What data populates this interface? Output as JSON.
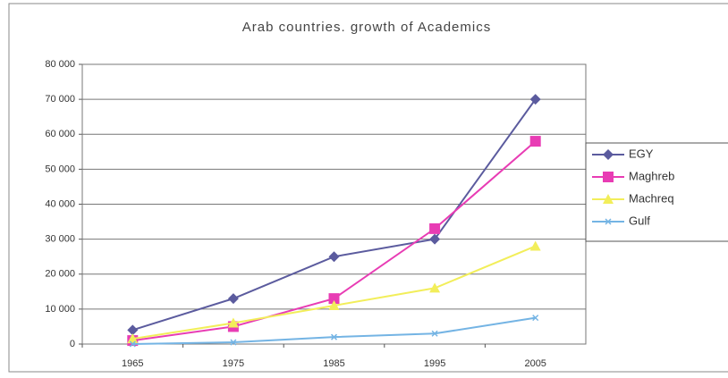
{
  "chart_data": {
    "type": "line",
    "title": "Arab countries. growth of Academics",
    "categories": [
      "1965",
      "1975",
      "1985",
      "1995",
      "2005"
    ],
    "series": [
      {
        "name": "EGY",
        "color": "#5b5b9e",
        "marker": "diamond",
        "values": [
          4000,
          13000,
          25000,
          30000,
          70000
        ]
      },
      {
        "name": "Maghreb",
        "color": "#e83cb4",
        "marker": "square",
        "values": [
          1000,
          5000,
          13000,
          33000,
          58000
        ]
      },
      {
        "name": "Machreq",
        "color": "#f2ee5a",
        "marker": "triangle",
        "values": [
          1500,
          6000,
          11000,
          16000,
          28000
        ]
      },
      {
        "name": "Gulf",
        "color": "#74b4e4",
        "marker": "cross",
        "values": [
          0,
          500,
          2000,
          3000,
          7500
        ]
      }
    ],
    "ylim": [
      0,
      80000
    ],
    "yticks": [
      0,
      {
        "value": 10000,
        "label": "10 000"
      },
      {
        "value": 20000,
        "label": "20 000"
      },
      {
        "value": 30000,
        "label": "30 000"
      },
      {
        "value": 40000,
        "label": "40 000"
      },
      {
        "value": 50000,
        "label": "50 000"
      },
      {
        "value": 60000,
        "label": "60 000"
      },
      {
        "value": 70000,
        "label": "70 000"
      },
      {
        "value": 80000,
        "label": "80 000"
      }
    ],
    "grid": true,
    "legend": "right"
  }
}
